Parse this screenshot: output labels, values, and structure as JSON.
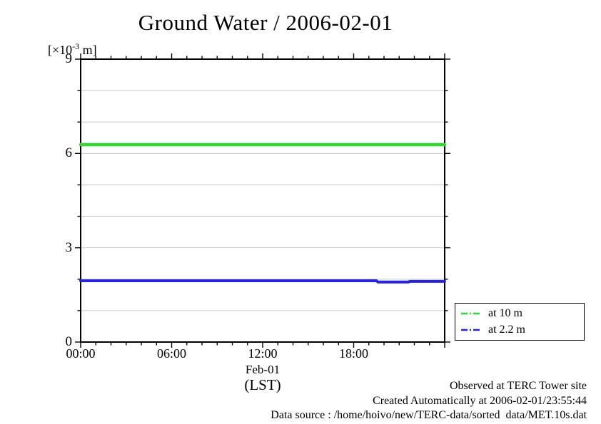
{
  "chart_data": {
    "type": "line",
    "title": "Ground Water / 2006-02-01",
    "x_axis": {
      "label": "Feb-01",
      "sublabel": "(LST)",
      "range_hours": [
        0,
        24
      ],
      "major_tick_hours": 6,
      "minor_tick_hours": 1,
      "tick_labels": [
        {
          "hour": 0,
          "text": "00:00"
        },
        {
          "hour": 6,
          "text": "06:00"
        },
        {
          "hour": 12,
          "text": "12:00"
        },
        {
          "hour": 18,
          "text": "18:00"
        }
      ]
    },
    "y_axis": {
      "unit_prefix": "[×10",
      "unit_exp": "-3",
      "unit_suffix": " m]",
      "range": [
        0,
        9
      ],
      "major_tick": 3,
      "minor_tick": 1,
      "gridline_interval": 1,
      "tick_labels": [
        {
          "value": 0,
          "text": "0"
        },
        {
          "value": 3,
          "text": "3"
        },
        {
          "value": 6,
          "text": "6"
        },
        {
          "value": 9,
          "text": "9"
        }
      ]
    },
    "grid": "horizontal-only",
    "colors": {
      "grid": "#c8c8c8",
      "axis": "#000000",
      "green_series": "#2fd72f",
      "blue_series": "#2525d6"
    },
    "series": [
      {
        "name": "at 10 m",
        "color": "#2fd72f",
        "stroke_width": 4.5,
        "points": [
          [
            0,
            6.28
          ],
          [
            24,
            6.28
          ]
        ]
      },
      {
        "name": "at 2.2 m",
        "color": "#2525d6",
        "stroke_width": 4,
        "points": [
          [
            0,
            1.95
          ],
          [
            19.5,
            1.95
          ],
          [
            19.6,
            1.91
          ],
          [
            21.6,
            1.91
          ],
          [
            21.7,
            1.93
          ],
          [
            24,
            1.93
          ]
        ]
      }
    ],
    "legend": {
      "position": "bottom-right-outside",
      "entries": [
        "at 10 m",
        "at 2.2 m"
      ]
    }
  },
  "footer": {
    "line1": "Observed at TERC Tower site",
    "line2": "Created Automatically at 2006-02-01/23:55:44",
    "line3": "Data source : /home/hoivo/new/TERC-data/sorted  data/MET.10s.dat"
  }
}
